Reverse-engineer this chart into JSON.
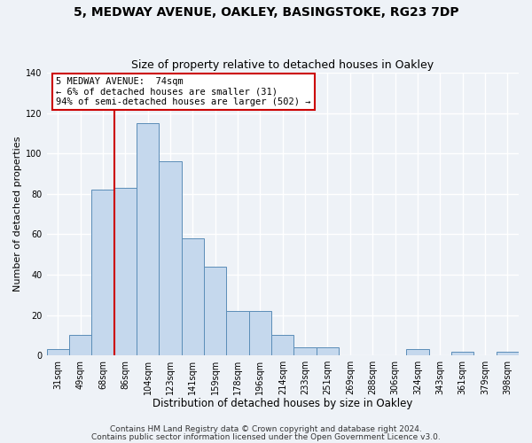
{
  "title1": "5, MEDWAY AVENUE, OAKLEY, BASINGSTOKE, RG23 7DP",
  "title2": "Size of property relative to detached houses in Oakley",
  "xlabel": "Distribution of detached houses by size in Oakley",
  "ylabel": "Number of detached properties",
  "bar_labels": [
    "31sqm",
    "49sqm",
    "68sqm",
    "86sqm",
    "104sqm",
    "123sqm",
    "141sqm",
    "159sqm",
    "178sqm",
    "196sqm",
    "214sqm",
    "233sqm",
    "251sqm",
    "269sqm",
    "288sqm",
    "306sqm",
    "324sqm",
    "343sqm",
    "361sqm",
    "379sqm",
    "398sqm"
  ],
  "bar_values": [
    3,
    10,
    82,
    83,
    115,
    96,
    58,
    44,
    22,
    22,
    10,
    4,
    4,
    0,
    0,
    0,
    3,
    0,
    2,
    0,
    2
  ],
  "bar_color": "#c5d8ed",
  "bar_edge_color": "#5b8db8",
  "ylim": [
    0,
    140
  ],
  "yticks": [
    0,
    20,
    40,
    60,
    80,
    100,
    120,
    140
  ],
  "vline_x": 2.5,
  "vline_color": "#cc0000",
  "annotation_title": "5 MEDWAY AVENUE:  74sqm",
  "annotation_line1": "← 6% of detached houses are smaller (31)",
  "annotation_line2": "94% of semi-detached houses are larger (502) →",
  "annotation_box_color": "#ffffff",
  "annotation_box_edge": "#cc0000",
  "footnote1": "Contains HM Land Registry data © Crown copyright and database right 2024.",
  "footnote2": "Contains public sector information licensed under the Open Government Licence v3.0.",
  "background_color": "#eef2f7",
  "grid_color": "#ffffff",
  "title1_fontsize": 10,
  "title2_fontsize": 9,
  "xlabel_fontsize": 8.5,
  "ylabel_fontsize": 8,
  "tick_fontsize": 7,
  "footnote_fontsize": 6.5,
  "ann_fontsize": 7.5
}
